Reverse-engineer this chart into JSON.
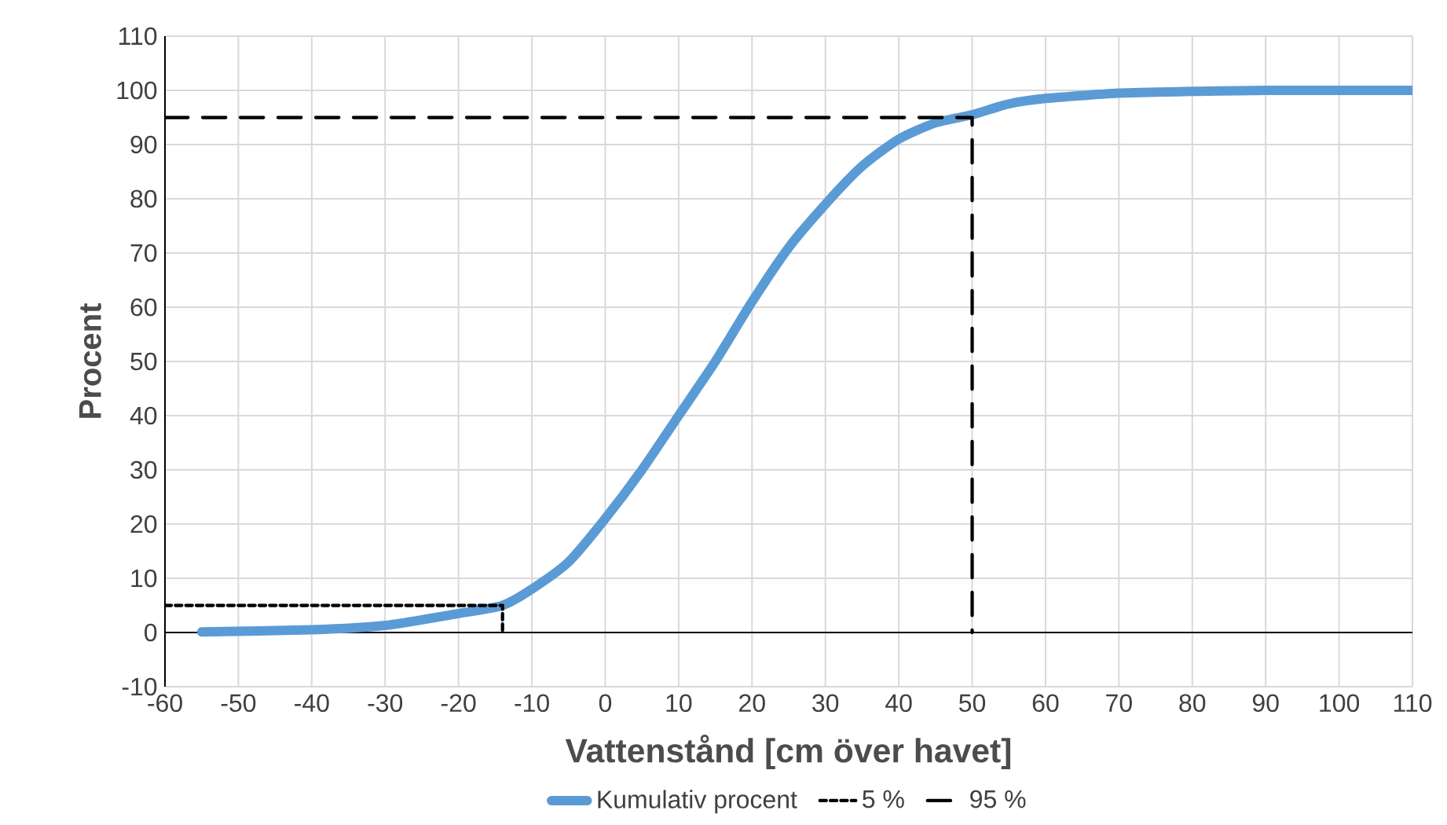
{
  "chart_data": {
    "type": "line",
    "xlabel": "Vattenstånd [cm över havet]",
    "ylabel": "Procent",
    "xlim": [
      -60,
      110
    ],
    "ylim": [
      -10,
      110
    ],
    "xticks": [
      -60,
      -50,
      -40,
      -30,
      -20,
      -10,
      0,
      10,
      20,
      30,
      40,
      50,
      60,
      70,
      80,
      90,
      100,
      110
    ],
    "yticks": [
      -10,
      0,
      10,
      20,
      30,
      40,
      50,
      60,
      70,
      80,
      90,
      100,
      110
    ],
    "grid": true,
    "legend": "bottom",
    "marker": "none",
    "ref_lines": [
      {
        "axis": "y",
        "value": 0,
        "color": "#000000"
      }
    ],
    "series": [
      {
        "name": "Kumulativ procent",
        "color": "#5b9bd5",
        "line_style": "solid",
        "x": [
          -55,
          -40,
          -30,
          -20,
          -14,
          -10,
          -5,
          0,
          5,
          10,
          15,
          20,
          25,
          30,
          35,
          40,
          45,
          50,
          55,
          60,
          70,
          80,
          90,
          110
        ],
        "values": [
          0.1,
          0.5,
          1.3,
          3.5,
          5,
          8,
          13,
          21,
          30,
          40,
          50,
          61,
          71,
          79,
          86,
          91,
          94,
          95.5,
          97.5,
          98.5,
          99.5,
          99.8,
          100,
          100
        ]
      },
      {
        "name": "5 %",
        "color": "#000000",
        "line_style": "dotted",
        "x": [
          -60,
          -14,
          -14
        ],
        "values": [
          5,
          5,
          0
        ]
      },
      {
        "name": "95 %",
        "color": "#000000",
        "line_style": "dashed",
        "x": [
          -60,
          50,
          50
        ],
        "values": [
          95,
          95,
          0
        ]
      }
    ]
  }
}
